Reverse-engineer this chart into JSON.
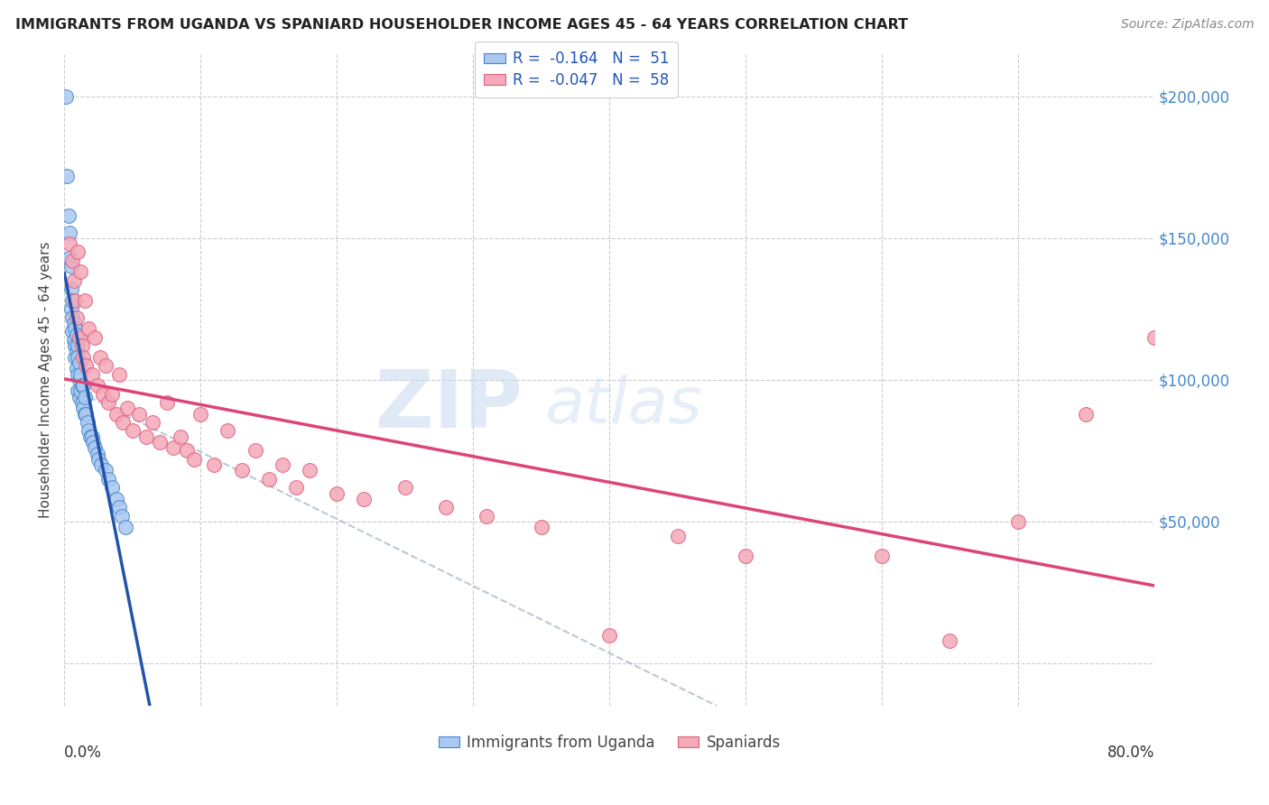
{
  "title": "IMMIGRANTS FROM UGANDA VS SPANIARD HOUSEHOLDER INCOME AGES 45 - 64 YEARS CORRELATION CHART",
  "source": "Source: ZipAtlas.com",
  "ylabel": "Householder Income Ages 45 - 64 years",
  "R_uganda": -0.164,
  "N_uganda": 51,
  "R_spaniard": -0.047,
  "N_spaniard": 58,
  "xlim": [
    0.0,
    0.8
  ],
  "ylim": [
    -15000,
    215000
  ],
  "yticks": [
    0,
    50000,
    100000,
    150000,
    200000
  ],
  "color_uganda_face": "#aac8f0",
  "color_uganda_edge": "#4488cc",
  "color_spaniard_face": "#f4a8b8",
  "color_spaniard_edge": "#e06080",
  "color_line_uganda": "#2255aa",
  "color_line_spaniard": "#dd4477",
  "color_line_dashed": "#aabbcc",
  "watermark_zip": "ZIP",
  "watermark_atlas": "atlas",
  "uganda_x": [
    0.001,
    0.002,
    0.003,
    0.004,
    0.004,
    0.005,
    0.005,
    0.005,
    0.006,
    0.006,
    0.006,
    0.007,
    0.007,
    0.008,
    0.008,
    0.008,
    0.009,
    0.009,
    0.009,
    0.01,
    0.01,
    0.01,
    0.01,
    0.011,
    0.011,
    0.011,
    0.012,
    0.012,
    0.013,
    0.013,
    0.014,
    0.014,
    0.015,
    0.015,
    0.016,
    0.017,
    0.018,
    0.019,
    0.02,
    0.021,
    0.022,
    0.024,
    0.025,
    0.027,
    0.03,
    0.032,
    0.035,
    0.038,
    0.04,
    0.042,
    0.045
  ],
  "uganda_y": [
    200000,
    172000,
    158000,
    152000,
    143000,
    140000,
    132000,
    125000,
    128000,
    122000,
    117000,
    120000,
    114000,
    118000,
    112000,
    108000,
    116000,
    110000,
    104000,
    112000,
    108000,
    102000,
    96000,
    106000,
    100000,
    94000,
    102000,
    96000,
    98000,
    92000,
    98000,
    90000,
    94000,
    88000,
    88000,
    85000,
    82000,
    80000,
    80000,
    78000,
    76000,
    74000,
    72000,
    70000,
    68000,
    65000,
    62000,
    58000,
    55000,
    52000,
    48000
  ],
  "spaniard_x": [
    0.004,
    0.006,
    0.007,
    0.008,
    0.009,
    0.01,
    0.011,
    0.012,
    0.013,
    0.014,
    0.015,
    0.016,
    0.018,
    0.02,
    0.022,
    0.024,
    0.026,
    0.028,
    0.03,
    0.032,
    0.035,
    0.038,
    0.04,
    0.043,
    0.046,
    0.05,
    0.055,
    0.06,
    0.065,
    0.07,
    0.075,
    0.08,
    0.085,
    0.09,
    0.095,
    0.1,
    0.11,
    0.12,
    0.13,
    0.14,
    0.15,
    0.16,
    0.17,
    0.18,
    0.2,
    0.22,
    0.25,
    0.28,
    0.31,
    0.35,
    0.4,
    0.45,
    0.5,
    0.6,
    0.65,
    0.7,
    0.75,
    0.8
  ],
  "spaniard_y": [
    148000,
    142000,
    135000,
    128000,
    122000,
    145000,
    115000,
    138000,
    112000,
    108000,
    128000,
    105000,
    118000,
    102000,
    115000,
    98000,
    108000,
    95000,
    105000,
    92000,
    95000,
    88000,
    102000,
    85000,
    90000,
    82000,
    88000,
    80000,
    85000,
    78000,
    92000,
    76000,
    80000,
    75000,
    72000,
    88000,
    70000,
    82000,
    68000,
    75000,
    65000,
    70000,
    62000,
    68000,
    60000,
    58000,
    62000,
    55000,
    52000,
    48000,
    10000,
    45000,
    38000,
    38000,
    8000,
    50000,
    88000,
    115000
  ]
}
